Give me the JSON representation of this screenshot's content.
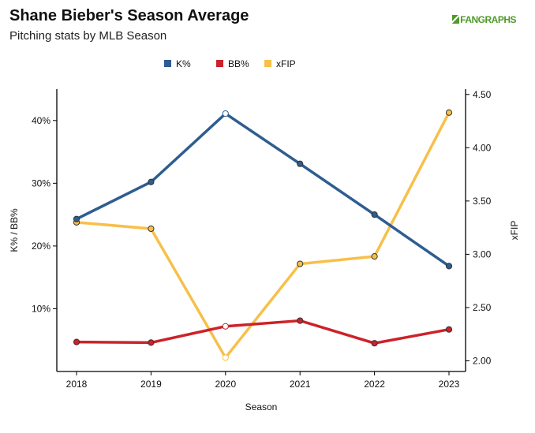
{
  "header": {
    "title": "Shane Bieber's Season Average",
    "subtitle": "Pitching stats by MLB Season",
    "brand": "FANGRAPHS"
  },
  "chart_data": {
    "type": "line",
    "x": [
      "2018",
      "2019",
      "2020",
      "2021",
      "2022",
      "2023"
    ],
    "xlabel": "Season",
    "ylabel_left": "K% / BB%",
    "ylabel_right": "xFIP",
    "left_axis": {
      "min": 0,
      "max": 45,
      "ticks": [
        10,
        20,
        30,
        40
      ],
      "tick_labels": [
        "10%",
        "20%",
        "30%",
        "40%"
      ]
    },
    "right_axis": {
      "min": 1.9,
      "max": 4.55,
      "ticks": [
        2.0,
        2.5,
        3.0,
        3.5,
        4.0,
        4.5
      ],
      "tick_labels": [
        "2.00",
        "2.50",
        "3.00",
        "3.50",
        "4.00",
        "4.50"
      ]
    },
    "series": [
      {
        "name": "K%",
        "axis": "left",
        "color": "#2e5d90",
        "values": [
          24.3,
          30.2,
          41.1,
          33.1,
          25.0,
          16.8
        ],
        "hollow_index": 2
      },
      {
        "name": "BB%",
        "axis": "left",
        "color": "#cc2229",
        "values": [
          4.7,
          4.6,
          7.2,
          8.1,
          4.5,
          6.7
        ],
        "hollow_index": 2
      },
      {
        "name": "xFIP",
        "axis": "right",
        "color": "#f7c04a",
        "values": [
          3.3,
          3.24,
          2.03,
          2.91,
          2.98,
          4.33
        ],
        "hollow_index": 2
      }
    ],
    "legend_position": "top-center",
    "grid": false
  }
}
